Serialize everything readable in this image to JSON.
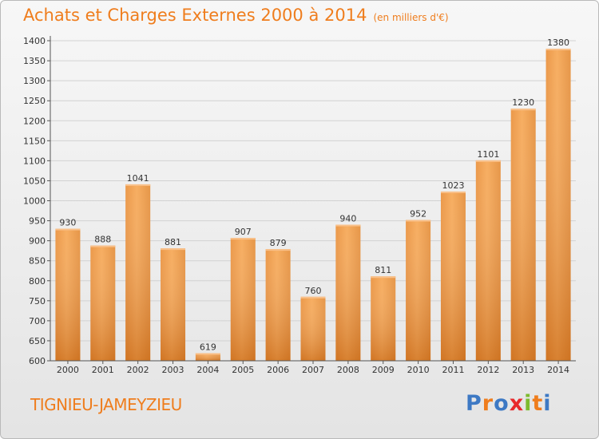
{
  "title": "Achats et Charges Externes 2000 à 2014",
  "unit": "(en milliers d'€)",
  "commune": "TIGNIEU-JAMEYZIEU",
  "logo": {
    "letters": [
      "P",
      "r",
      "o",
      "x",
      "i",
      "t",
      "i"
    ],
    "colors": [
      "#3d79c4",
      "#ef7d1d",
      "#3d79c4",
      "#e8282b",
      "#7dbb2f",
      "#ef7d1d",
      "#3d79c4"
    ]
  },
  "colors": {
    "bar_light": "#f6a04a",
    "bar_dark": "#d9721a",
    "accent": "#ef7d1d"
  },
  "chart_data": {
    "type": "bar",
    "title": "Achats et Charges Externes 2000 à 2014",
    "subtitle": "(en milliers d'€)",
    "xlabel": "",
    "ylabel": "",
    "categories": [
      "2000",
      "2001",
      "2002",
      "2003",
      "2004",
      "2005",
      "2006",
      "2007",
      "2008",
      "2009",
      "2010",
      "2011",
      "2012",
      "2013",
      "2014"
    ],
    "values": [
      930,
      888,
      1041,
      881,
      619,
      907,
      879,
      760,
      940,
      811,
      952,
      1023,
      1101,
      1230,
      1380
    ],
    "ylim": [
      600,
      1400
    ],
    "yticks": [
      600,
      650,
      700,
      750,
      800,
      850,
      900,
      950,
      1000,
      1050,
      1100,
      1150,
      1200,
      1250,
      1300,
      1350,
      1400
    ],
    "grid": true,
    "data_labels": true
  }
}
